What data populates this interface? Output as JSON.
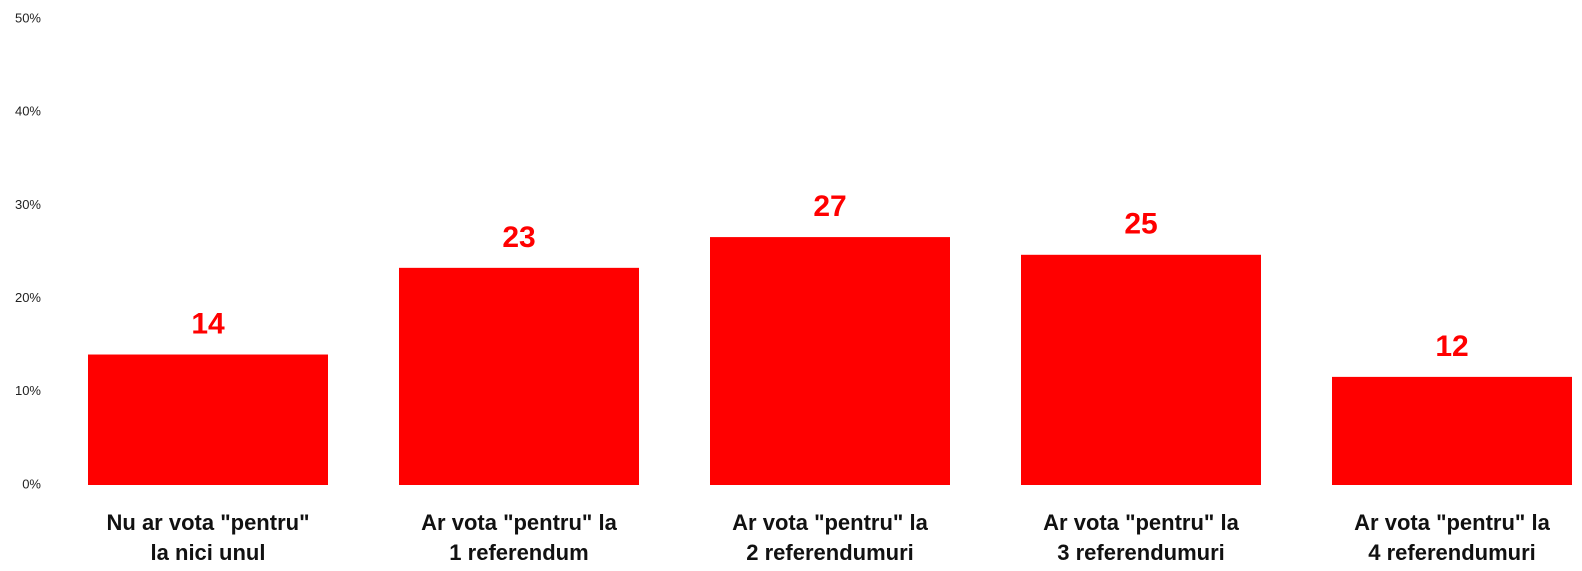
{
  "chart_data": {
    "type": "bar",
    "categories": [
      "Nu ar vota \"pentru\"\nla nici unul",
      "Ar vota \"pentru\" la\n1 referendum",
      "Ar vota \"pentru\" la\n2 referendumuri",
      "Ar vota \"pentru\" la\n3 referendumuri",
      "Ar vota \"pentru\" la\n4 referendumuri"
    ],
    "values": [
      14,
      23.3,
      26.6,
      24.7,
      11.6
    ],
    "value_labels": [
      "14",
      "23",
      "27",
      "25",
      "12"
    ],
    "color": "#ff0000",
    "ylim": [
      0,
      50
    ],
    "yticks": [
      {
        "value": 0,
        "label": "0%"
      },
      {
        "value": 10,
        "label": "10%"
      },
      {
        "value": 20,
        "label": "20%"
      },
      {
        "value": 30,
        "label": "30%"
      },
      {
        "value": 40,
        "label": "40%"
      },
      {
        "value": 50,
        "label": "50%"
      }
    ],
    "grid": false
  }
}
